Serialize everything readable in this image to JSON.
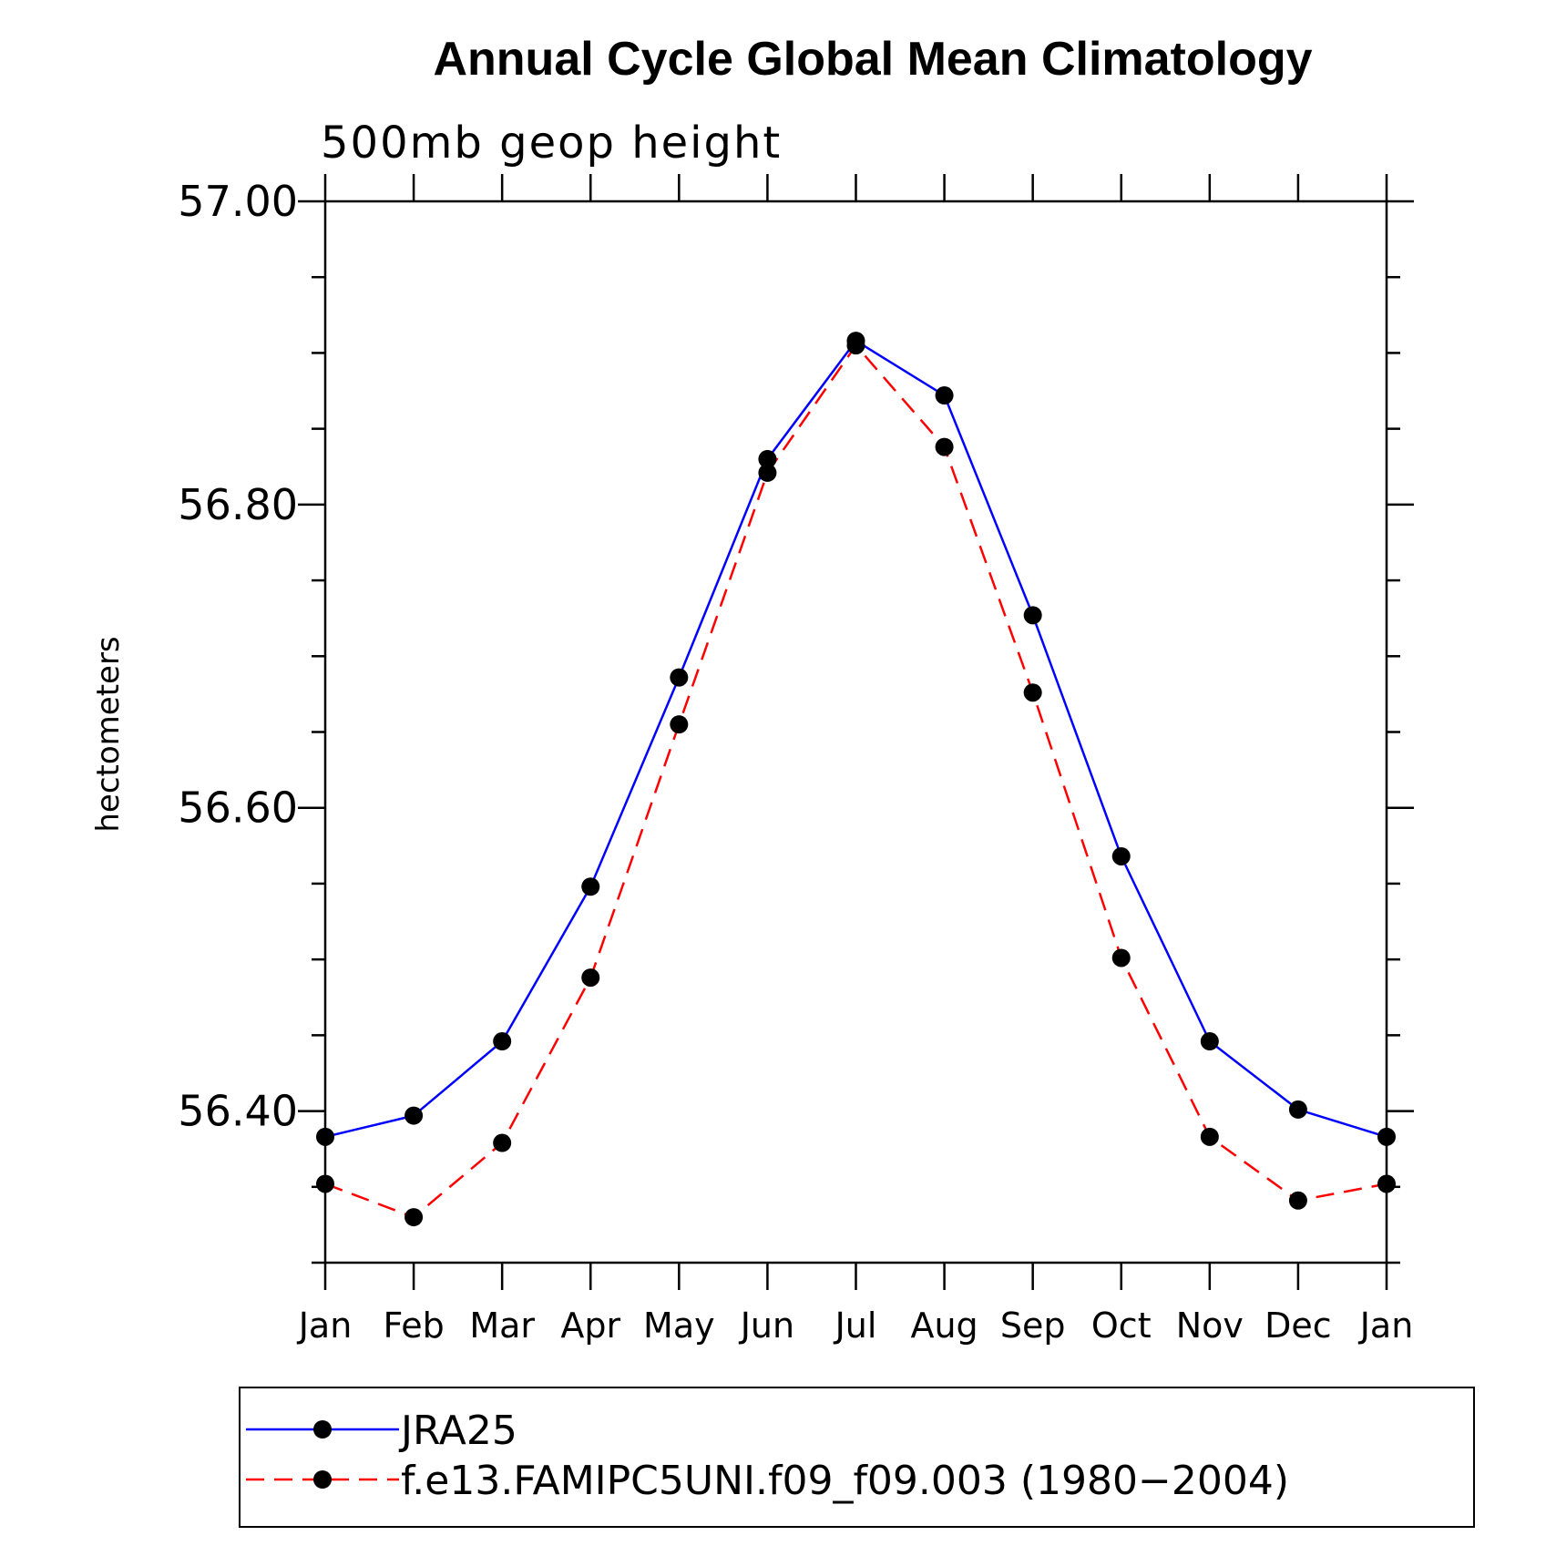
{
  "chart_data": {
    "type": "line",
    "title": "Annual Cycle Global Mean Climatology",
    "subtitle": "500mb geop height",
    "ylabel": "hectometers",
    "xlabel": "",
    "categories": [
      "Jan",
      "Feb",
      "Mar",
      "Apr",
      "May",
      "Jun",
      "Jul",
      "Aug",
      "Sep",
      "Oct",
      "Nov",
      "Dec",
      "Jan"
    ],
    "ylim": [
      56.3,
      57.0
    ],
    "yticks": [
      56.4,
      56.6,
      56.8,
      57.0
    ],
    "ytick_labels": [
      "56.40",
      "56.60",
      "56.80",
      "57.00"
    ],
    "yminor_step": 0.05,
    "grid": false,
    "legend_position": "bottom",
    "series": [
      {
        "name": "JRA25",
        "color": "#0000ff",
        "line_style": "solid",
        "marker": "filled-circle",
        "values": [
          56.383,
          56.397,
          56.446,
          56.548,
          56.686,
          56.83,
          56.908,
          56.872,
          56.727,
          56.568,
          56.446,
          56.401,
          56.383
        ]
      },
      {
        "name": "f.e13.FAMIPC5UNI.f09_f09.003 (1980−2004)",
        "color": "#ff0000",
        "line_style": "dashed",
        "marker": "filled-circle",
        "values": [
          56.352,
          56.33,
          56.379,
          56.488,
          56.655,
          56.821,
          56.905,
          56.838,
          56.676,
          56.501,
          56.383,
          56.341,
          56.352
        ]
      }
    ]
  }
}
